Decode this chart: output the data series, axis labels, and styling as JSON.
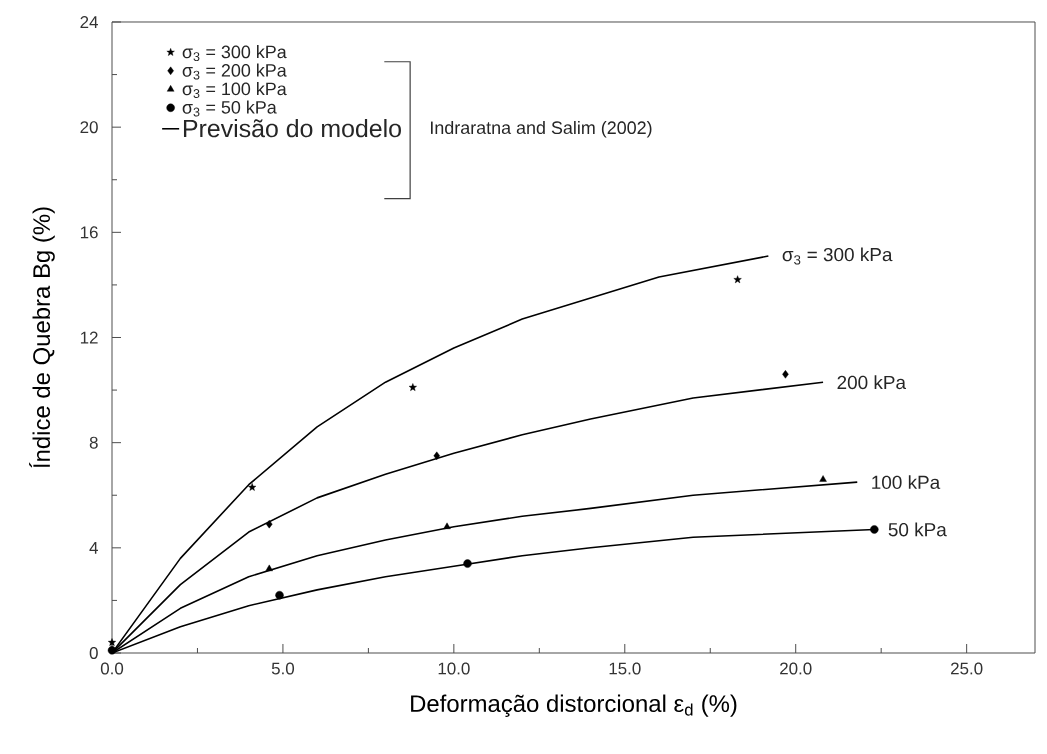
{
  "chart_data": {
    "type": "scatter",
    "xlabel": "Deformação distorcional ε$_{d}$ (%)",
    "ylabel": "Índice de Quebra Bg (%)",
    "xlim": [
      0,
      27
    ],
    "ylim": [
      0,
      24
    ],
    "xticks": [
      {
        "value": 0,
        "label": "0.0"
      },
      {
        "value": 2.5,
        "label": null
      },
      {
        "value": 5,
        "label": "5.0"
      },
      {
        "value": 7.5,
        "label": null
      },
      {
        "value": 10,
        "label": "10.0"
      },
      {
        "value": 12.5,
        "label": null
      },
      {
        "value": 15,
        "label": "15.0"
      },
      {
        "value": 17.5,
        "label": null
      },
      {
        "value": 20,
        "label": "20.0"
      },
      {
        "value": 22.5,
        "label": null
      },
      {
        "value": 25,
        "label": "25.0"
      }
    ],
    "yticks": [
      0,
      {
        "value": 2,
        "label": null
      },
      4,
      {
        "value": 6,
        "label": null
      },
      8,
      {
        "value": 10,
        "label": null
      },
      12,
      {
        "value": 14,
        "label": null
      },
      16,
      {
        "value": 18,
        "label": null
      },
      20,
      {
        "value": 22,
        "label": null
      },
      24
    ],
    "legend": "top left",
    "series": [
      {
        "name": "σ$_{3}$ = 300 kPa",
        "marker": "star",
        "color": "#000000",
        "x": [
          0,
          4.1,
          8.8,
          18.3
        ],
        "values": [
          0.4,
          6.3,
          10.1,
          14.2
        ]
      },
      {
        "name": "σ$_{3}$ = 200 kPa",
        "marker": "diamond",
        "color": "#000000",
        "x": [
          4.6,
          9.5,
          19.7
        ],
        "values": [
          4.9,
          7.5,
          10.6
        ]
      },
      {
        "name": "σ$_{3}$ = 100 kPa",
        "marker": "triangle",
        "color": "#000000",
        "x": [
          4.6,
          9.8,
          20.8
        ],
        "values": [
          3.2,
          4.8,
          6.6
        ]
      },
      {
        "name": "σ$_{3}$ = 50 kPa",
        "marker": "circle",
        "color": "#000000",
        "x": [
          0,
          4.9,
          10.4,
          22.3
        ],
        "values": [
          0.1,
          2.2,
          3.4,
          4.7
        ]
      },
      {
        "name": "Previsão do modelo",
        "type": "line",
        "line_style": "solid",
        "color": "#000000",
        "x": [
          0,
          2,
          4,
          6,
          8,
          10,
          12,
          14,
          16,
          19.2
        ],
        "values": [
          0,
          3.6,
          6.4,
          8.6,
          10.3,
          11.6,
          12.7,
          13.5,
          14.3,
          15.1
        ]
      },
      {
        "type": "line",
        "line_style": "solid",
        "color": "#000000",
        "x": [
          0,
          2,
          4,
          6,
          8,
          10,
          12,
          14,
          17,
          20.8
        ],
        "values": [
          0,
          2.6,
          4.6,
          5.9,
          6.8,
          7.6,
          8.3,
          8.9,
          9.7,
          10.3
        ]
      },
      {
        "type": "line",
        "line_style": "solid",
        "color": "#000000",
        "x": [
          0,
          2,
          4,
          6,
          8,
          10,
          12,
          14,
          17,
          21.8
        ],
        "values": [
          0,
          1.7,
          2.9,
          3.7,
          4.3,
          4.8,
          5.2,
          5.5,
          6.0,
          6.5
        ]
      },
      {
        "type": "line",
        "line_style": "solid",
        "color": "#000000",
        "x": [
          0,
          2,
          4,
          6,
          8,
          10,
          12,
          14,
          17,
          22.3
        ],
        "values": [
          0,
          1.0,
          1.8,
          2.4,
          2.9,
          3.3,
          3.7,
          4.0,
          4.4,
          4.7
        ]
      }
    ],
    "annotations": [
      "Indraratna and Salim (2002)",
      {
        "text": "σ$_{3}$ = 300 kPa",
        "x": 19.2,
        "y": 15.1
      },
      {
        "text": "200 kPa",
        "x": 20.8,
        "y": 10.3
      },
      {
        "text": "100 kPa",
        "x": 21.8,
        "y": 6.5
      },
      {
        "text": "50 kPa",
        "x": 22.3,
        "y": 4.7
      }
    ]
  }
}
